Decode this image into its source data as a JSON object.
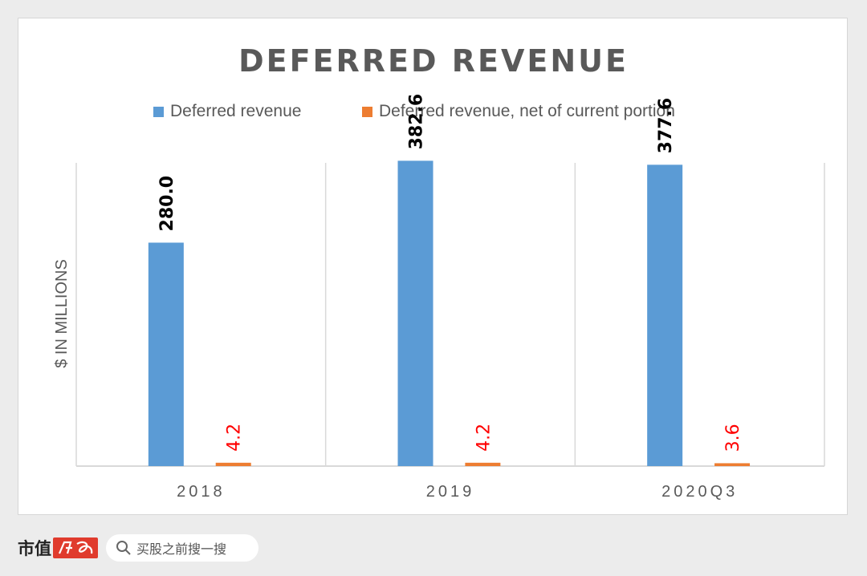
{
  "chart_data": {
    "type": "bar",
    "title": "DEFERRED  REVENUE",
    "ylabel": "$ IN MILLIONS",
    "xlabel": "",
    "categories": [
      "2018",
      "2019",
      "2020Q3"
    ],
    "series": [
      {
        "name": "Deferred revenue",
        "color": "#5b9bd5",
        "label_color": "#000000",
        "values": [
          280.0,
          382.6,
          377.6
        ],
        "labels": [
          "280.0",
          "382.6",
          "377.6"
        ]
      },
      {
        "name": "Deferred revenue, net of current portion",
        "color": "#ed7d31",
        "label_color": "#ff0000",
        "values": [
          4.2,
          4.2,
          3.6
        ],
        "labels": [
          "4.2",
          "4.2",
          "3.6"
        ]
      }
    ],
    "ylim": [
      0,
      450
    ],
    "grid": false,
    "legend": "top-center"
  },
  "footer": {
    "brand": "市值",
    "brand_logo": "风云",
    "search_placeholder": "买股之前搜一搜"
  },
  "colors": {
    "title": "#595959",
    "axis_text": "#595959",
    "divider": "#d9d9d9"
  }
}
